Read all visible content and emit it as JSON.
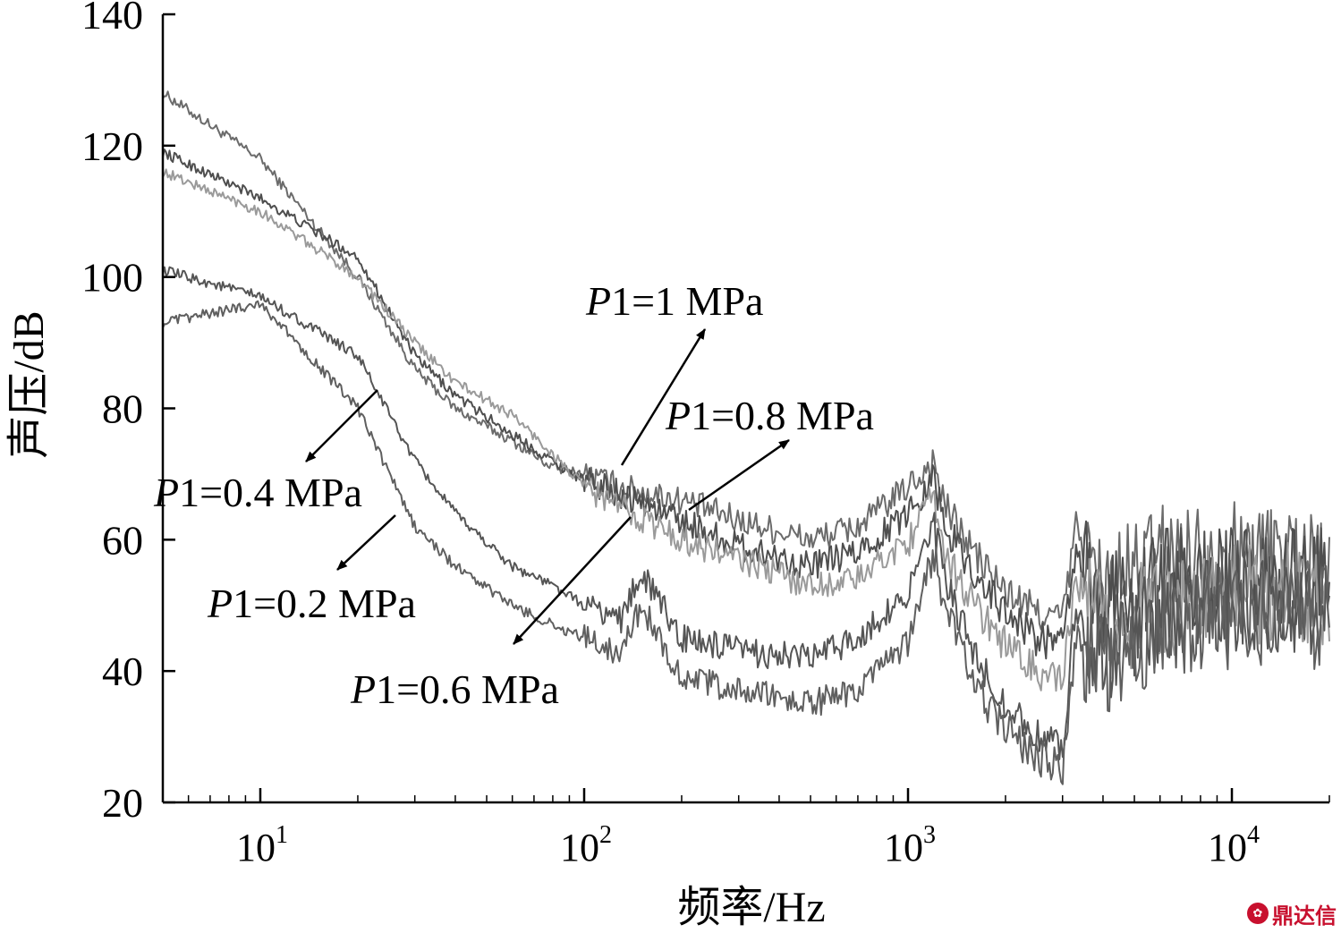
{
  "chart_data": {
    "type": "line",
    "xlabel": "频率/Hz",
    "ylabel": "声压/dB",
    "xscale": "log",
    "xlim": [
      5,
      20000
    ],
    "ylim": [
      20,
      140
    ],
    "yticks": [
      20,
      40,
      60,
      80,
      100,
      120,
      140
    ],
    "xticks": [
      {
        "value": 10,
        "base": "10",
        "exp": "1"
      },
      {
        "value": 100,
        "base": "10",
        "exp": "2"
      },
      {
        "value": 1000,
        "base": "10",
        "exp": "3"
      },
      {
        "value": 10000,
        "base": "10",
        "exp": "4"
      }
    ],
    "series": [
      {
        "name": "P1=1 MPa",
        "color": "#6b6b6b",
        "x": [
          5,
          10,
          20,
          30,
          40,
          60,
          80,
          100,
          130,
          200,
          300,
          500,
          700,
          1000,
          1200,
          1300,
          1600,
          2000,
          2500,
          3000,
          3300,
          4000,
          6000,
          10000,
          20000
        ],
        "y": [
          128,
          118,
          100,
          86,
          80,
          75,
          71,
          70,
          68,
          66,
          63,
          60,
          62,
          68,
          72,
          65,
          58,
          52,
          49,
          48,
          62,
          52,
          58,
          58,
          58
        ]
      },
      {
        "name": "P1=0.8 MPa",
        "color": "#4e4e4e",
        "x": [
          5,
          10,
          20,
          30,
          40,
          60,
          80,
          100,
          130,
          200,
          300,
          500,
          700,
          1000,
          1200,
          1300,
          1600,
          2000,
          2500,
          3000,
          3300,
          4000,
          6000,
          10000,
          20000
        ],
        "y": [
          119,
          112,
          103,
          88,
          82,
          76,
          72,
          69,
          67,
          63,
          59,
          56,
          58,
          64,
          70,
          62,
          55,
          49,
          45,
          44,
          58,
          50,
          54,
          54,
          54
        ]
      },
      {
        "name": "P1=0.6 MPa",
        "color": "#9a9a9a",
        "x": [
          5,
          10,
          20,
          30,
          40,
          60,
          80,
          100,
          130,
          200,
          300,
          500,
          700,
          1000,
          1200,
          1300,
          1600,
          2000,
          2500,
          3000,
          3300,
          4000,
          6000,
          10000,
          20000
        ],
        "y": [
          116,
          110,
          100,
          90,
          84,
          79,
          73,
          68,
          65,
          60,
          57,
          53,
          54,
          60,
          66,
          58,
          50,
          44,
          40,
          38,
          54,
          46,
          50,
          52,
          52
        ]
      },
      {
        "name": "P1=0.4 MPa",
        "color": "#555555",
        "x": [
          5,
          10,
          20,
          30,
          40,
          60,
          80,
          100,
          130,
          150,
          200,
          300,
          500,
          700,
          1000,
          1200,
          1300,
          1600,
          2000,
          2500,
          3000,
          3300,
          4000,
          6000,
          10000,
          20000
        ],
        "y": [
          101,
          97,
          88,
          72,
          64,
          56,
          53,
          50,
          48,
          55,
          45,
          43,
          42,
          45,
          52,
          62,
          54,
          42,
          35,
          30,
          28,
          50,
          42,
          48,
          50,
          50
        ]
      },
      {
        "name": "P1=0.2 MPa",
        "color": "#5f5f5f",
        "x": [
          5,
          10,
          20,
          30,
          40,
          60,
          80,
          100,
          130,
          150,
          200,
          300,
          500,
          700,
          1000,
          1200,
          1300,
          1600,
          2000,
          2500,
          3000,
          3300,
          4000,
          6000,
          10000,
          20000
        ],
        "y": [
          93,
          96,
          80,
          62,
          56,
          50,
          47,
          45,
          43,
          50,
          39,
          37,
          35,
          37,
          44,
          58,
          50,
          38,
          31,
          27,
          25,
          45,
          40,
          46,
          48,
          48
        ]
      }
    ],
    "annotations": [
      {
        "italic": "P",
        "rest": "1=1 MPa"
      },
      {
        "italic": "P",
        "rest": "1=0.8 MPa"
      },
      {
        "italic": "P",
        "rest": "1=0.4 MPa"
      },
      {
        "italic": "P",
        "rest": "1=0.2 MPa"
      },
      {
        "italic": "P",
        "rest": "1=0.6 MPa"
      }
    ]
  },
  "watermark": {
    "text": "鼎达信",
    "icon": "logo-icon"
  }
}
